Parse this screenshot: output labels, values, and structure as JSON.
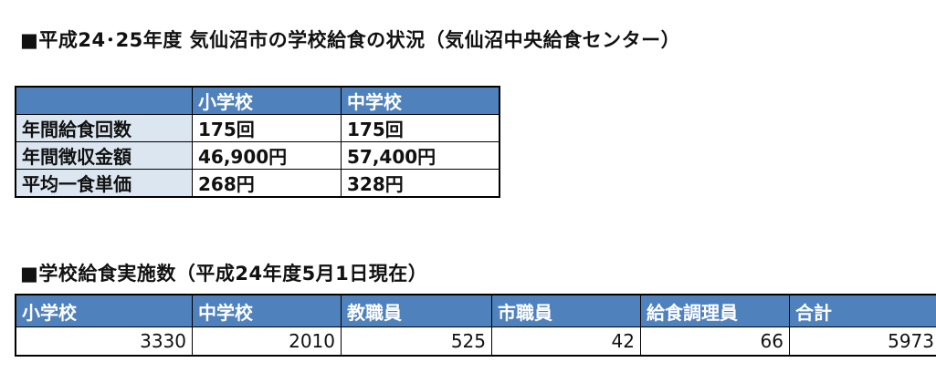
{
  "section1": {
    "title": "■平成24･25年度 気仙沼市の学校給食の状況（気仙沼中央給食センター）",
    "headers": [
      "",
      "小学校",
      "中学校"
    ],
    "rows": [
      {
        "label": "年間給食回数",
        "elementary": "175回",
        "junior_high": "175回"
      },
      {
        "label": "年間徴収金額",
        "elementary": "46,900円",
        "junior_high": "57,400円"
      },
      {
        "label": "平均一食単価",
        "elementary": "268円",
        "junior_high": "328円"
      }
    ]
  },
  "section2": {
    "title": "■学校給食実施数（平成24年度5月1日現在）",
    "headers": [
      "小学校",
      "中学校",
      "教職員",
      "市職員",
      "給食調理員",
      "合計"
    ],
    "values": [
      "3330",
      "2010",
      "525",
      "42",
      "66",
      "5973"
    ]
  },
  "colors": {
    "header_bg": "#4f81bd",
    "row_label_bg": "#dce6f1"
  }
}
